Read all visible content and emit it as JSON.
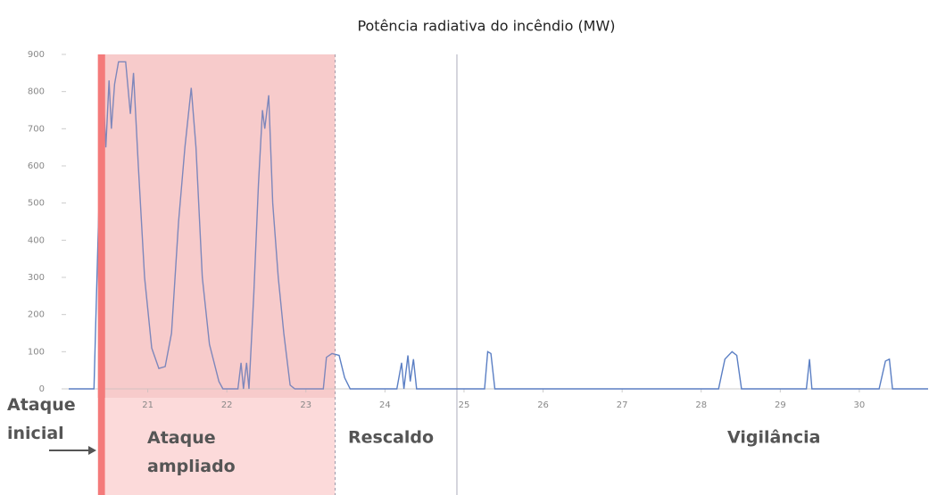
{
  "chart_data": {
    "type": "line",
    "title": "Potência radiativa do incêndio (MW)",
    "xlim": [
      20,
      30.87
    ],
    "xticks": [
      21,
      22,
      23,
      24,
      25,
      26,
      27,
      28,
      29,
      30
    ],
    "ylim": [
      0,
      900
    ],
    "yticks": [
      0,
      100,
      200,
      300,
      400,
      500,
      600,
      700,
      800,
      900
    ],
    "series": [
      {
        "name": "Potência radiativa",
        "color": "#5b7fc4",
        "x": [
          20.0,
          20.26,
          20.32,
          20.37,
          20.41,
          20.44,
          20.47,
          20.51,
          20.54,
          20.58,
          20.63,
          20.72,
          20.78,
          20.82,
          20.88,
          20.96,
          21.05,
          21.14,
          21.22,
          21.3,
          21.39,
          21.47,
          21.55,
          21.61,
          21.69,
          21.78,
          21.9,
          21.95,
          22.14,
          22.18,
          22.21,
          22.25,
          22.28,
          22.34,
          22.4,
          22.45,
          22.48,
          22.53,
          22.58,
          22.65,
          22.72,
          22.8,
          22.86,
          23.22,
          23.26,
          23.33,
          23.42,
          23.49,
          23.56,
          24.15,
          24.21,
          24.24,
          24.29,
          24.32,
          24.36,
          24.4,
          25.26,
          25.3,
          25.34,
          25.39,
          28.22,
          28.3,
          28.39,
          28.45,
          28.51,
          29.33,
          29.37,
          29.4,
          30.25,
          30.33,
          30.38,
          30.42,
          30.87
        ],
        "values": [
          0,
          0,
          0,
          400,
          700,
          780,
          650,
          830,
          700,
          820,
          880,
          880,
          740,
          850,
          600,
          300,
          110,
          55,
          60,
          150,
          450,
          650,
          810,
          650,
          300,
          120,
          20,
          0,
          0,
          70,
          0,
          70,
          0,
          250,
          550,
          750,
          700,
          790,
          500,
          300,
          150,
          10,
          0,
          0,
          85,
          95,
          90,
          30,
          0,
          0,
          70,
          0,
          90,
          20,
          80,
          0,
          0,
          100,
          95,
          0,
          0,
          80,
          100,
          90,
          0,
          0,
          80,
          0,
          0,
          75,
          80,
          0,
          0
        ]
      }
    ],
    "phases": [
      {
        "label": "Ataque inicial",
        "start": 20.37,
        "end": 20.46,
        "color": "#f47a7a"
      },
      {
        "label": "Ataque ampliado",
        "start": 20.46,
        "end": 23.37,
        "color": "#fcdada"
      },
      {
        "label": "Rescaldo",
        "start": 23.37,
        "end": 24.91,
        "color": "#ffffff"
      },
      {
        "label": "Vigilância",
        "start": 24.91,
        "end": 30.87,
        "color": "#ffffff"
      }
    ]
  }
}
